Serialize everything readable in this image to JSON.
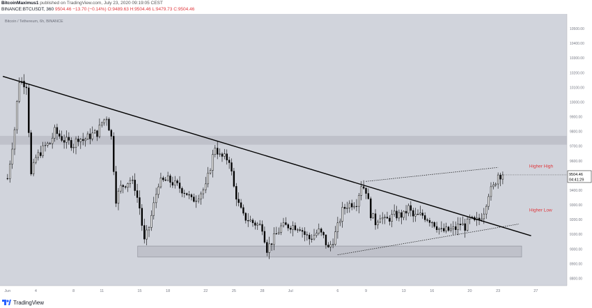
{
  "header": {
    "author": "BitcoinMaximus1",
    "published": "published on TradingView.com, July 23, 2020 09:19:05 CEST",
    "symbol": "BINANCE:BTCUSDT, 360",
    "last": "9504.46",
    "change": "−13.70 (−0.14%)",
    "open": "O:9489.63",
    "high": "H:9504.46",
    "low": "L:9479.73",
    "close": "C:9504.46"
  },
  "footer": {
    "brand": "TradingView"
  },
  "colors": {
    "plot_bg": "#d1d4dc",
    "candle": "#000000",
    "text_red": "#e0373c",
    "axis_text": "#787b86"
  },
  "chart_data": {
    "type": "candlestick",
    "title": "Bitcoin / Tethereum, 6h, BINANCE",
    "xlabel": "",
    "ylabel": "",
    "ylim": [
      8750,
      10600
    ],
    "y_ticks": [
      8800,
      8900,
      9000,
      9100,
      9200,
      9300,
      9400,
      9500,
      9600,
      9700,
      9800,
      9900,
      10000,
      10100,
      10200,
      10300,
      10400,
      10500
    ],
    "y_tick_labels": [
      "8800.00",
      "8900.00",
      "9000.00",
      "9100.00",
      "9200.00",
      "9300.00",
      "9400.00",
      "9500.00",
      "9600.00",
      "9700.00",
      "9800.00",
      "9900.00",
      "10000.00",
      "10100.00",
      "10200.00",
      "10300.00",
      "10400.00",
      "10500.00"
    ],
    "x_ticks": [
      {
        "label": "Jun",
        "day": 0
      },
      {
        "label": "4",
        "day": 3
      },
      {
        "label": "8",
        "day": 7
      },
      {
        "label": "11",
        "day": 10
      },
      {
        "label": "15",
        "day": 14
      },
      {
        "label": "18",
        "day": 17
      },
      {
        "label": "22",
        "day": 21
      },
      {
        "label": "25",
        "day": 24
      },
      {
        "label": "28",
        "day": 27
      },
      {
        "label": "Jul",
        "day": 30
      },
      {
        "label": "6",
        "day": 35
      },
      {
        "label": "9",
        "day": 38
      },
      {
        "label": "13",
        "day": 42
      },
      {
        "label": "16",
        "day": 45
      },
      {
        "label": "20",
        "day": 49
      },
      {
        "label": "23",
        "day": 52
      },
      {
        "label": "27",
        "day": 56
      }
    ],
    "day_range": [
      -0.8,
      59.3
    ],
    "price_label": {
      "value": 9504.46,
      "text": "9504.46",
      "countdown": "04:41:29"
    },
    "anchors": [
      [
        0,
        9480
      ],
      [
        0.8,
        9840
      ],
      [
        1.2,
        10150
      ],
      [
        2,
        10120
      ],
      [
        2.5,
        9500
      ],
      [
        3,
        9620
      ],
      [
        4,
        9700
      ],
      [
        4.5,
        9720
      ],
      [
        5,
        9800
      ],
      [
        6,
        9740
      ],
      [
        7,
        9710
      ],
      [
        7.5,
        9760
      ],
      [
        8,
        9740
      ],
      [
        9,
        9780
      ],
      [
        9.5,
        9790
      ],
      [
        10,
        9860
      ],
      [
        10.5,
        9900
      ],
      [
        11,
        9760
      ],
      [
        11.5,
        9340
      ],
      [
        12,
        9420
      ],
      [
        13,
        9470
      ],
      [
        13.5,
        9420
      ],
      [
        14,
        9280
      ],
      [
        14.5,
        9050
      ],
      [
        15,
        9150
      ],
      [
        16,
        9450
      ],
      [
        17,
        9470
      ],
      [
        18,
        9430
      ],
      [
        19,
        9380
      ],
      [
        19.5,
        9330
      ],
      [
        20,
        9350
      ],
      [
        21,
        9420
      ],
      [
        21.5,
        9560
      ],
      [
        22,
        9700
      ],
      [
        22.5,
        9630
      ],
      [
        23,
        9620
      ],
      [
        23.5,
        9610
      ],
      [
        24,
        9420
      ],
      [
        24.5,
        9300
      ],
      [
        25,
        9220
      ],
      [
        26,
        9180
      ],
      [
        27,
        9150
      ],
      [
        27.5,
        9000
      ],
      [
        28,
        9050
      ],
      [
        29,
        9150
      ],
      [
        30,
        9160
      ],
      [
        31,
        9150
      ],
      [
        31.5,
        9100
      ],
      [
        32,
        9070
      ],
      [
        33,
        9120
      ],
      [
        33.5,
        9080
      ],
      [
        34,
        9000
      ],
      [
        34.5,
        9060
      ],
      [
        35,
        9150
      ],
      [
        35.5,
        9260
      ],
      [
        36,
        9300
      ],
      [
        37,
        9320
      ],
      [
        37.5,
        9440
      ],
      [
        38,
        9400
      ],
      [
        38.5,
        9240
      ],
      [
        39,
        9180
      ],
      [
        39.5,
        9230
      ],
      [
        40,
        9190
      ],
      [
        41,
        9230
      ],
      [
        42,
        9230
      ],
      [
        42.5,
        9280
      ],
      [
        43,
        9220
      ],
      [
        44,
        9230
      ],
      [
        45,
        9190
      ],
      [
        46,
        9120
      ],
      [
        47,
        9130
      ],
      [
        47.5,
        9140
      ],
      [
        48,
        9170
      ],
      [
        48.5,
        9150
      ],
      [
        49,
        9200
      ],
      [
        49.5,
        9180
      ],
      [
        50,
        9200
      ],
      [
        50.5,
        9260
      ],
      [
        51,
        9380
      ],
      [
        51.5,
        9420
      ],
      [
        52,
        9510
      ],
      [
        52.5,
        9500
      ]
    ],
    "candles_per_day": 4,
    "last_close": 9504.46,
    "zones": [
      {
        "name": "resistance-zone",
        "day_from": -0.8,
        "day_to": 59.3,
        "y_from": 9710,
        "y_to": 9770
      },
      {
        "name": "support-zone",
        "day_from": 13.8,
        "day_to": 54.5,
        "y_from": 8945,
        "y_to": 9020
      }
    ],
    "lines": [
      {
        "name": "descending-trendline",
        "style": "solid",
        "points": [
          [
            -0.5,
            10175
          ],
          [
            55.5,
            9090
          ]
        ]
      },
      {
        "name": "higher-high-line",
        "style": "dotted",
        "points": [
          [
            38,
            9460
          ],
          [
            52,
            9555
          ]
        ]
      },
      {
        "name": "higher-low-line",
        "style": "dotted",
        "points": [
          [
            35,
            8960
          ],
          [
            54.2,
            9170
          ]
        ]
      }
    ],
    "annotations": [
      {
        "text": "Higher High",
        "day": 55.3,
        "y": 9555,
        "color": "#e0373c"
      },
      {
        "text": "Higher Low",
        "day": 55.3,
        "y": 9255,
        "color": "#e0373c"
      }
    ]
  }
}
